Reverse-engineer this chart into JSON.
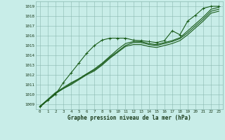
{
  "bg_color": "#c8ede8",
  "plot_bg_color": "#c8ede8",
  "line_color": "#1a5c1a",
  "grid_color": "#8ab8b0",
  "xlabel": "Graphe pression niveau de la mer (hPa)",
  "xlim": [
    -0.5,
    23.5
  ],
  "ylim": [
    1008.5,
    1019.5
  ],
  "yticks": [
    1009,
    1010,
    1011,
    1012,
    1013,
    1014,
    1015,
    1016,
    1017,
    1018,
    1019
  ],
  "xticks": [
    0,
    1,
    2,
    3,
    4,
    5,
    6,
    7,
    8,
    9,
    10,
    11,
    12,
    13,
    14,
    15,
    16,
    17,
    18,
    19,
    20,
    21,
    22,
    23
  ],
  "series": [
    [
      1008.8,
      1009.4,
      1010.0,
      1011.2,
      1012.2,
      1013.2,
      1014.2,
      1015.0,
      1015.55,
      1015.75,
      1015.75,
      1015.75,
      1015.55,
      1015.5,
      1015.4,
      1015.3,
      1015.5,
      1016.5,
      1016.1,
      1017.5,
      1018.1,
      1018.8,
      1019.0,
      1019.0
    ],
    [
      1008.8,
      1009.4,
      1010.1,
      1010.6,
      1011.1,
      1011.6,
      1012.1,
      1012.6,
      1013.2,
      1013.9,
      1014.6,
      1015.2,
      1015.4,
      1015.4,
      1015.2,
      1015.1,
      1015.3,
      1015.5,
      1015.8,
      1016.5,
      1017.2,
      1017.9,
      1018.7,
      1018.9
    ],
    [
      1008.8,
      1009.5,
      1010.2,
      1010.7,
      1011.2,
      1011.6,
      1012.1,
      1012.5,
      1013.1,
      1013.8,
      1014.4,
      1015.0,
      1015.3,
      1015.3,
      1015.1,
      1015.0,
      1015.2,
      1015.4,
      1015.7,
      1016.3,
      1017.0,
      1017.7,
      1018.5,
      1018.7
    ],
    [
      1008.7,
      1009.4,
      1010.1,
      1010.6,
      1011.0,
      1011.5,
      1012.0,
      1012.4,
      1013.0,
      1013.7,
      1014.3,
      1014.9,
      1015.1,
      1015.1,
      1014.9,
      1014.8,
      1015.0,
      1015.2,
      1015.5,
      1016.1,
      1016.8,
      1017.5,
      1018.3,
      1018.5
    ]
  ]
}
